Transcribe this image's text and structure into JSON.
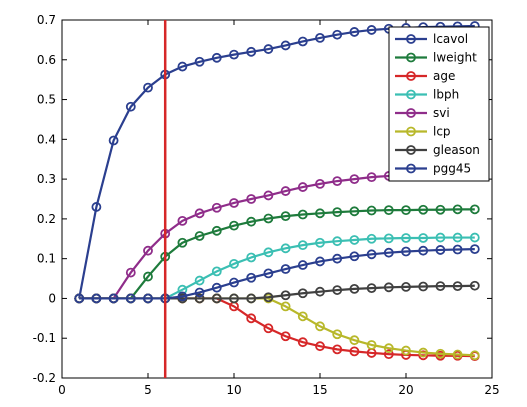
{
  "chart_data": {
    "type": "line",
    "title": "",
    "xlabel": "",
    "ylabel": "",
    "xlim": [
      0,
      25
    ],
    "ylim": [
      -0.2,
      0.7
    ],
    "xticks": [
      "0",
      "5",
      "10",
      "15",
      "20",
      "25"
    ],
    "yticks": [
      "-0.2",
      "-0.1",
      "0",
      "0.1",
      "0.2",
      "0.3",
      "0.4",
      "0.5",
      "0.6",
      "0.7"
    ],
    "grid": false,
    "legend_position": "top-right",
    "vline": {
      "x": 6,
      "color": "#d62728"
    },
    "x": [
      1,
      2,
      3,
      4,
      5,
      6,
      7,
      8,
      9,
      10,
      11,
      12,
      13,
      14,
      15,
      16,
      17,
      18,
      19,
      20,
      21,
      22,
      23,
      24
    ],
    "series": [
      {
        "name": "lcavol",
        "color": "#2b3f8f",
        "values": [
          0,
          0.23,
          0.397,
          0.482,
          0.53,
          0.563,
          0.583,
          0.595,
          0.605,
          0.613,
          0.62,
          0.627,
          0.636,
          0.646,
          0.655,
          0.663,
          0.67,
          0.675,
          0.678,
          0.68,
          0.682,
          0.683,
          0.684,
          0.685
        ]
      },
      {
        "name": "lweight",
        "color": "#1e7b3c",
        "values": [
          0,
          0,
          0,
          0,
          0.055,
          0.105,
          0.14,
          0.157,
          0.17,
          0.183,
          0.193,
          0.201,
          0.207,
          0.211,
          0.214,
          0.217,
          0.219,
          0.221,
          0.222,
          0.222,
          0.223,
          0.223,
          0.224,
          0.224
        ]
      },
      {
        "name": "age",
        "color": "#d62728",
        "values": [
          0,
          0,
          0,
          0,
          0,
          0,
          0,
          0,
          0,
          -0.02,
          -0.05,
          -0.075,
          -0.095,
          -0.11,
          -0.12,
          -0.128,
          -0.133,
          -0.137,
          -0.14,
          -0.142,
          -0.143,
          -0.144,
          -0.144,
          -0.145
        ]
      },
      {
        "name": "lbph",
        "color": "#3bbfb3",
        "values": [
          0,
          0,
          0,
          0,
          0,
          0,
          0.022,
          0.045,
          0.068,
          0.087,
          0.103,
          0.116,
          0.126,
          0.134,
          0.14,
          0.144,
          0.147,
          0.15,
          0.151,
          0.152,
          0.152,
          0.153,
          0.153,
          0.153
        ]
      },
      {
        "name": "svi",
        "color": "#8f2d8a",
        "values": [
          0,
          0,
          0,
          0.065,
          0.12,
          0.163,
          0.195,
          0.214,
          0.228,
          0.24,
          0.25,
          0.259,
          0.27,
          0.28,
          0.288,
          0.295,
          0.3,
          0.305,
          0.308,
          0.31,
          0.311,
          0.312,
          0.313,
          0.313
        ]
      },
      {
        "name": "lcp",
        "color": "#b8b82a",
        "values": [
          0,
          0,
          0,
          0,
          0,
          0,
          0,
          0,
          0,
          0,
          0,
          0,
          -0.02,
          -0.045,
          -0.07,
          -0.09,
          -0.105,
          -0.117,
          -0.125,
          -0.131,
          -0.136,
          -0.139,
          -0.141,
          -0.143
        ]
      },
      {
        "name": "gleason",
        "color": "#404040",
        "values": [
          0,
          0,
          0,
          0,
          0,
          0,
          0,
          0,
          0,
          0,
          0,
          0.003,
          0.008,
          0.013,
          0.017,
          0.021,
          0.024,
          0.026,
          0.028,
          0.029,
          0.03,
          0.031,
          0.031,
          0.032
        ]
      },
      {
        "name": "pgg45",
        "color": "#2b3f8f",
        "values": [
          0,
          0,
          0,
          0,
          0,
          0,
          0.005,
          0.015,
          0.027,
          0.04,
          0.052,
          0.063,
          0.074,
          0.084,
          0.093,
          0.1,
          0.106,
          0.111,
          0.115,
          0.118,
          0.12,
          0.122,
          0.123,
          0.124
        ]
      }
    ]
  }
}
